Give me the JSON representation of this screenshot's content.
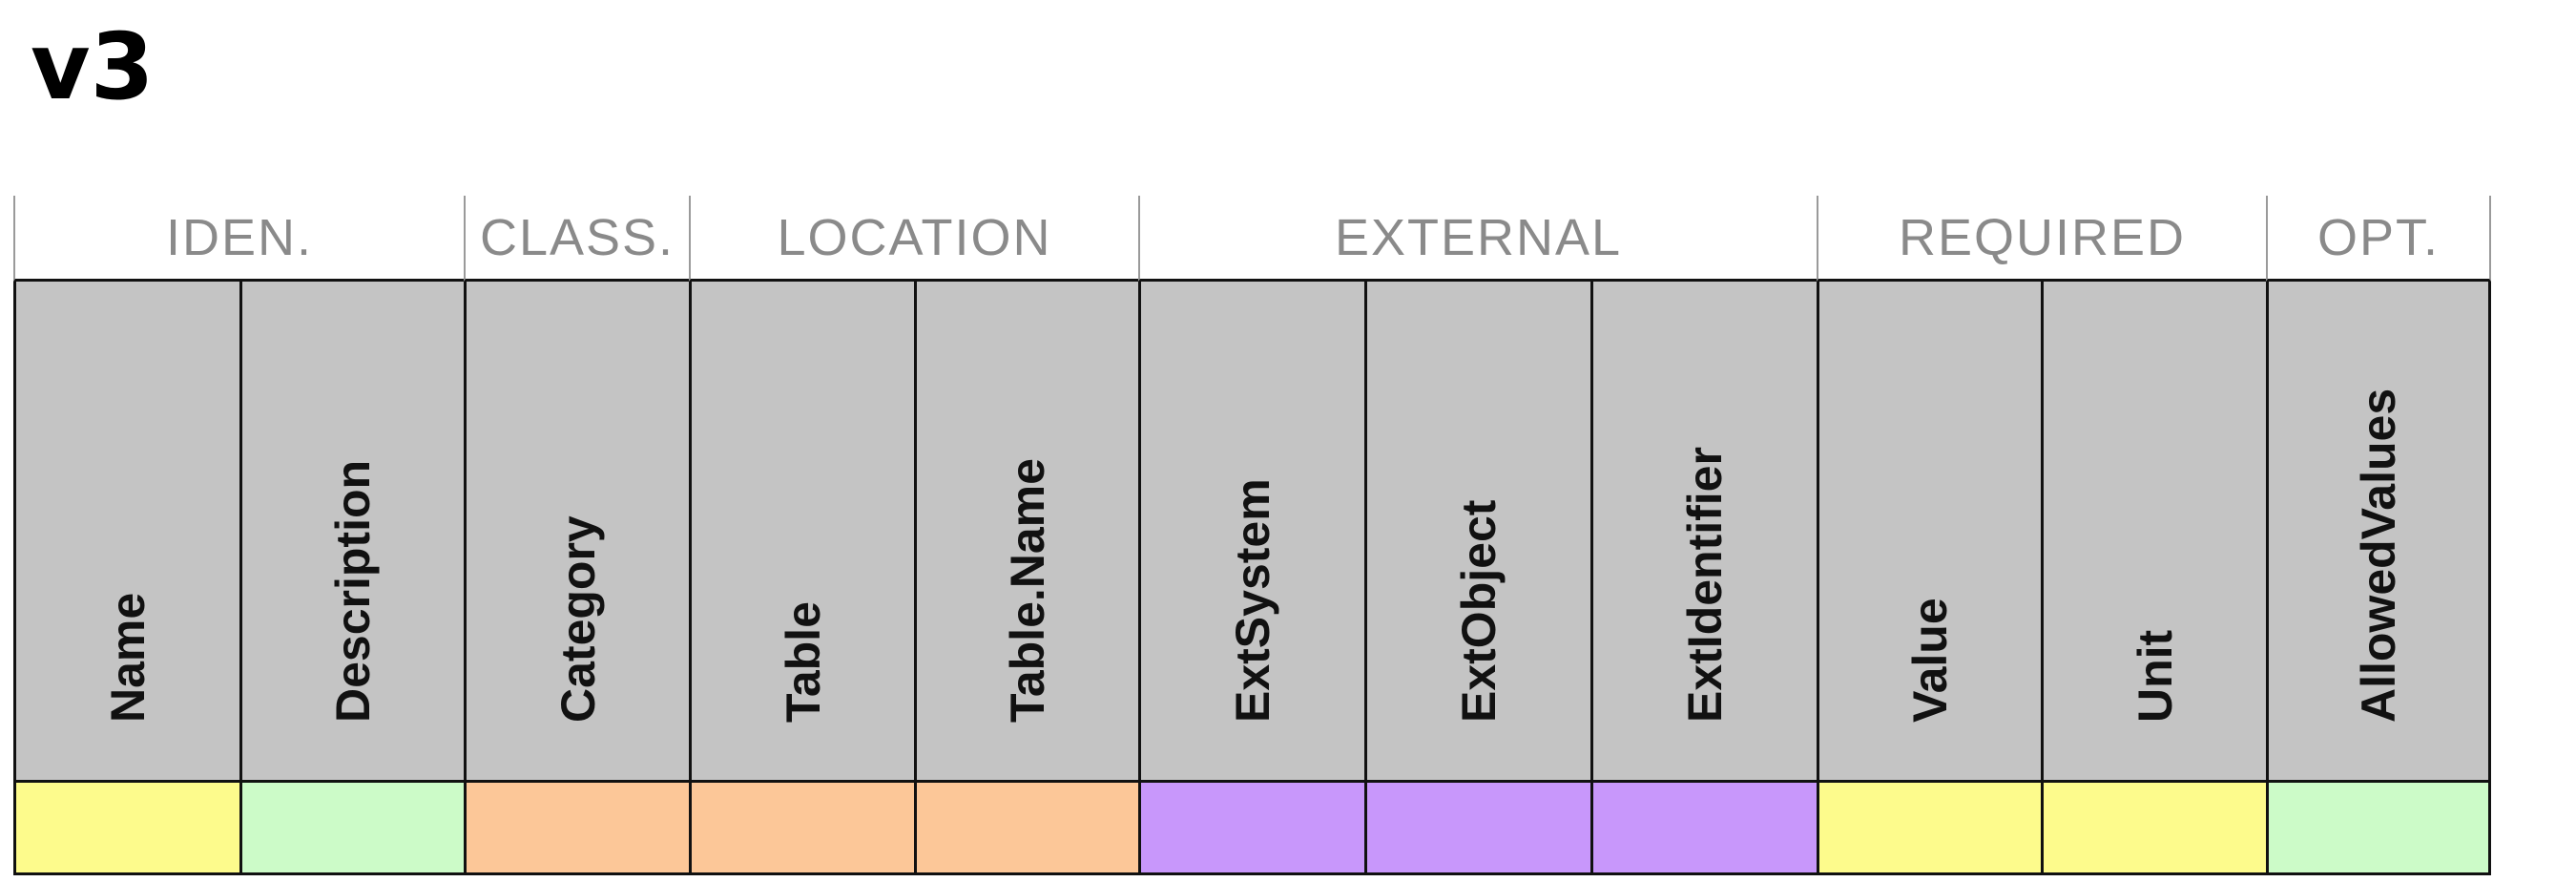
{
  "title": "v3",
  "groups": [
    {
      "label": "IDEN.",
      "span": 2
    },
    {
      "label": "CLASS.",
      "span": 1
    },
    {
      "label": "LOCATION",
      "span": 2
    },
    {
      "label": "EXTERNAL",
      "span": 3
    },
    {
      "label": "REQUIRED",
      "span": 2
    },
    {
      "label": "OPT.",
      "span": 1
    }
  ],
  "fields": [
    {
      "label": "Name",
      "color": "#fdfb8c"
    },
    {
      "label": "Description",
      "color": "#ccfbc8"
    },
    {
      "label": "Category",
      "color": "#fcc798"
    },
    {
      "label": "Table",
      "color": "#fcc798"
    },
    {
      "label": "Table.Name",
      "color": "#fcc798"
    },
    {
      "label": "ExtSystem",
      "color": "#c897fb"
    },
    {
      "label": "ExtObject",
      "color": "#c897fb"
    },
    {
      "label": "ExtIdentifier",
      "color": "#c897fb"
    },
    {
      "label": "Value",
      "color": "#fdfb8c"
    },
    {
      "label": "Unit",
      "color": "#fdfb8c"
    },
    {
      "label": "AllowedValues",
      "color": "#ccfbc8"
    }
  ]
}
